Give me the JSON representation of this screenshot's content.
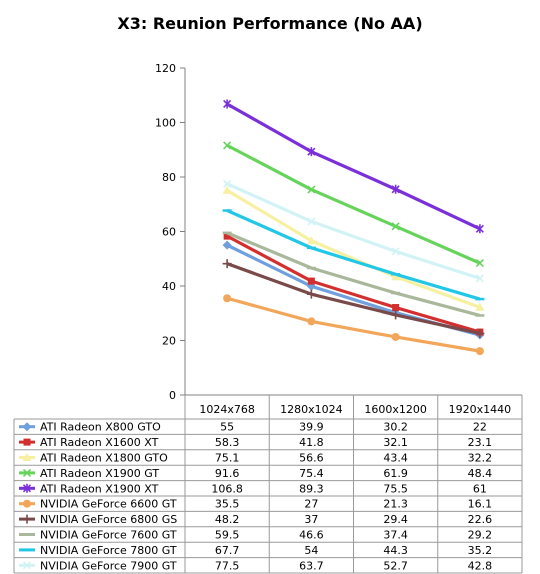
{
  "chart_data": {
    "type": "line",
    "title": "X3: Reunion Performance (No AA)",
    "categories": [
      "1024x768",
      "1280x1024",
      "1600x1200",
      "1920x1440"
    ],
    "ylim": [
      0,
      120
    ],
    "yticks": [
      0,
      20,
      40,
      60,
      80,
      100,
      120
    ],
    "grid": false,
    "legend": "data-table-below",
    "series": [
      {
        "name": "ATI Radeon X800 GTO",
        "values": [
          55,
          39.9,
          30.2,
          22
        ],
        "labels": [
          "55",
          "39.9",
          "30.2",
          "22"
        ],
        "color": "#6f9fdc",
        "marker": "diamond"
      },
      {
        "name": "ATI Radeon X1600 XT",
        "values": [
          58.3,
          41.8,
          32.1,
          23.1
        ],
        "labels": [
          "58.3",
          "41.8",
          "32.1",
          "23.1"
        ],
        "color": "#d32f2f",
        "marker": "square"
      },
      {
        "name": "ATI Radeon X1800 GTO",
        "values": [
          75.1,
          56.6,
          43.4,
          32.2
        ],
        "labels": [
          "75.1",
          "56.6",
          "43.4",
          "32.2"
        ],
        "color": "#f7f0a0",
        "marker": "triangle"
      },
      {
        "name": "ATI Radeon X1900 GT",
        "values": [
          91.6,
          75.4,
          61.9,
          48.4
        ],
        "labels": [
          "91.6",
          "75.4",
          "61.9",
          "48.4"
        ],
        "color": "#66d45a",
        "marker": "x"
      },
      {
        "name": "ATI Radeon X1900 XT",
        "values": [
          106.8,
          89.3,
          75.5,
          61
        ],
        "labels": [
          "106.8",
          "89.3",
          "75.5",
          "61"
        ],
        "color": "#7a2fd9",
        "marker": "star"
      },
      {
        "name": "NVIDIA GeForce 6600 GT",
        "values": [
          35.5,
          27,
          21.3,
          16.1
        ],
        "labels": [
          "35.5",
          "27",
          "21.3",
          "16.1"
        ],
        "color": "#f2a65a",
        "marker": "circle"
      },
      {
        "name": "NVIDIA GeForce 6800 GS",
        "values": [
          48.2,
          37,
          29.4,
          22.6
        ],
        "labels": [
          "48.2",
          "37",
          "29.4",
          "22.6"
        ],
        "color": "#7a4a4a",
        "marker": "plus"
      },
      {
        "name": "NVIDIA GeForce 7600 GT",
        "values": [
          59.5,
          46.6,
          37.4,
          29.2
        ],
        "labels": [
          "59.5",
          "46.6",
          "37.4",
          "29.2"
        ],
        "color": "#a9b79a",
        "marker": "dash"
      },
      {
        "name": "NVIDIA GeForce 7800 GT",
        "values": [
          67.7,
          54,
          44.3,
          35.2
        ],
        "labels": [
          "67.7",
          "54",
          "44.3",
          "35.2"
        ],
        "color": "#22c6e6",
        "marker": "dash"
      },
      {
        "name": "NVIDIA GeForce 7900 GT",
        "values": [
          77.5,
          63.7,
          52.7,
          42.8
        ],
        "labels": [
          "77.5",
          "63.7",
          "52.7",
          "42.8"
        ],
        "color": "#d2f3f5",
        "marker": "x"
      }
    ]
  }
}
